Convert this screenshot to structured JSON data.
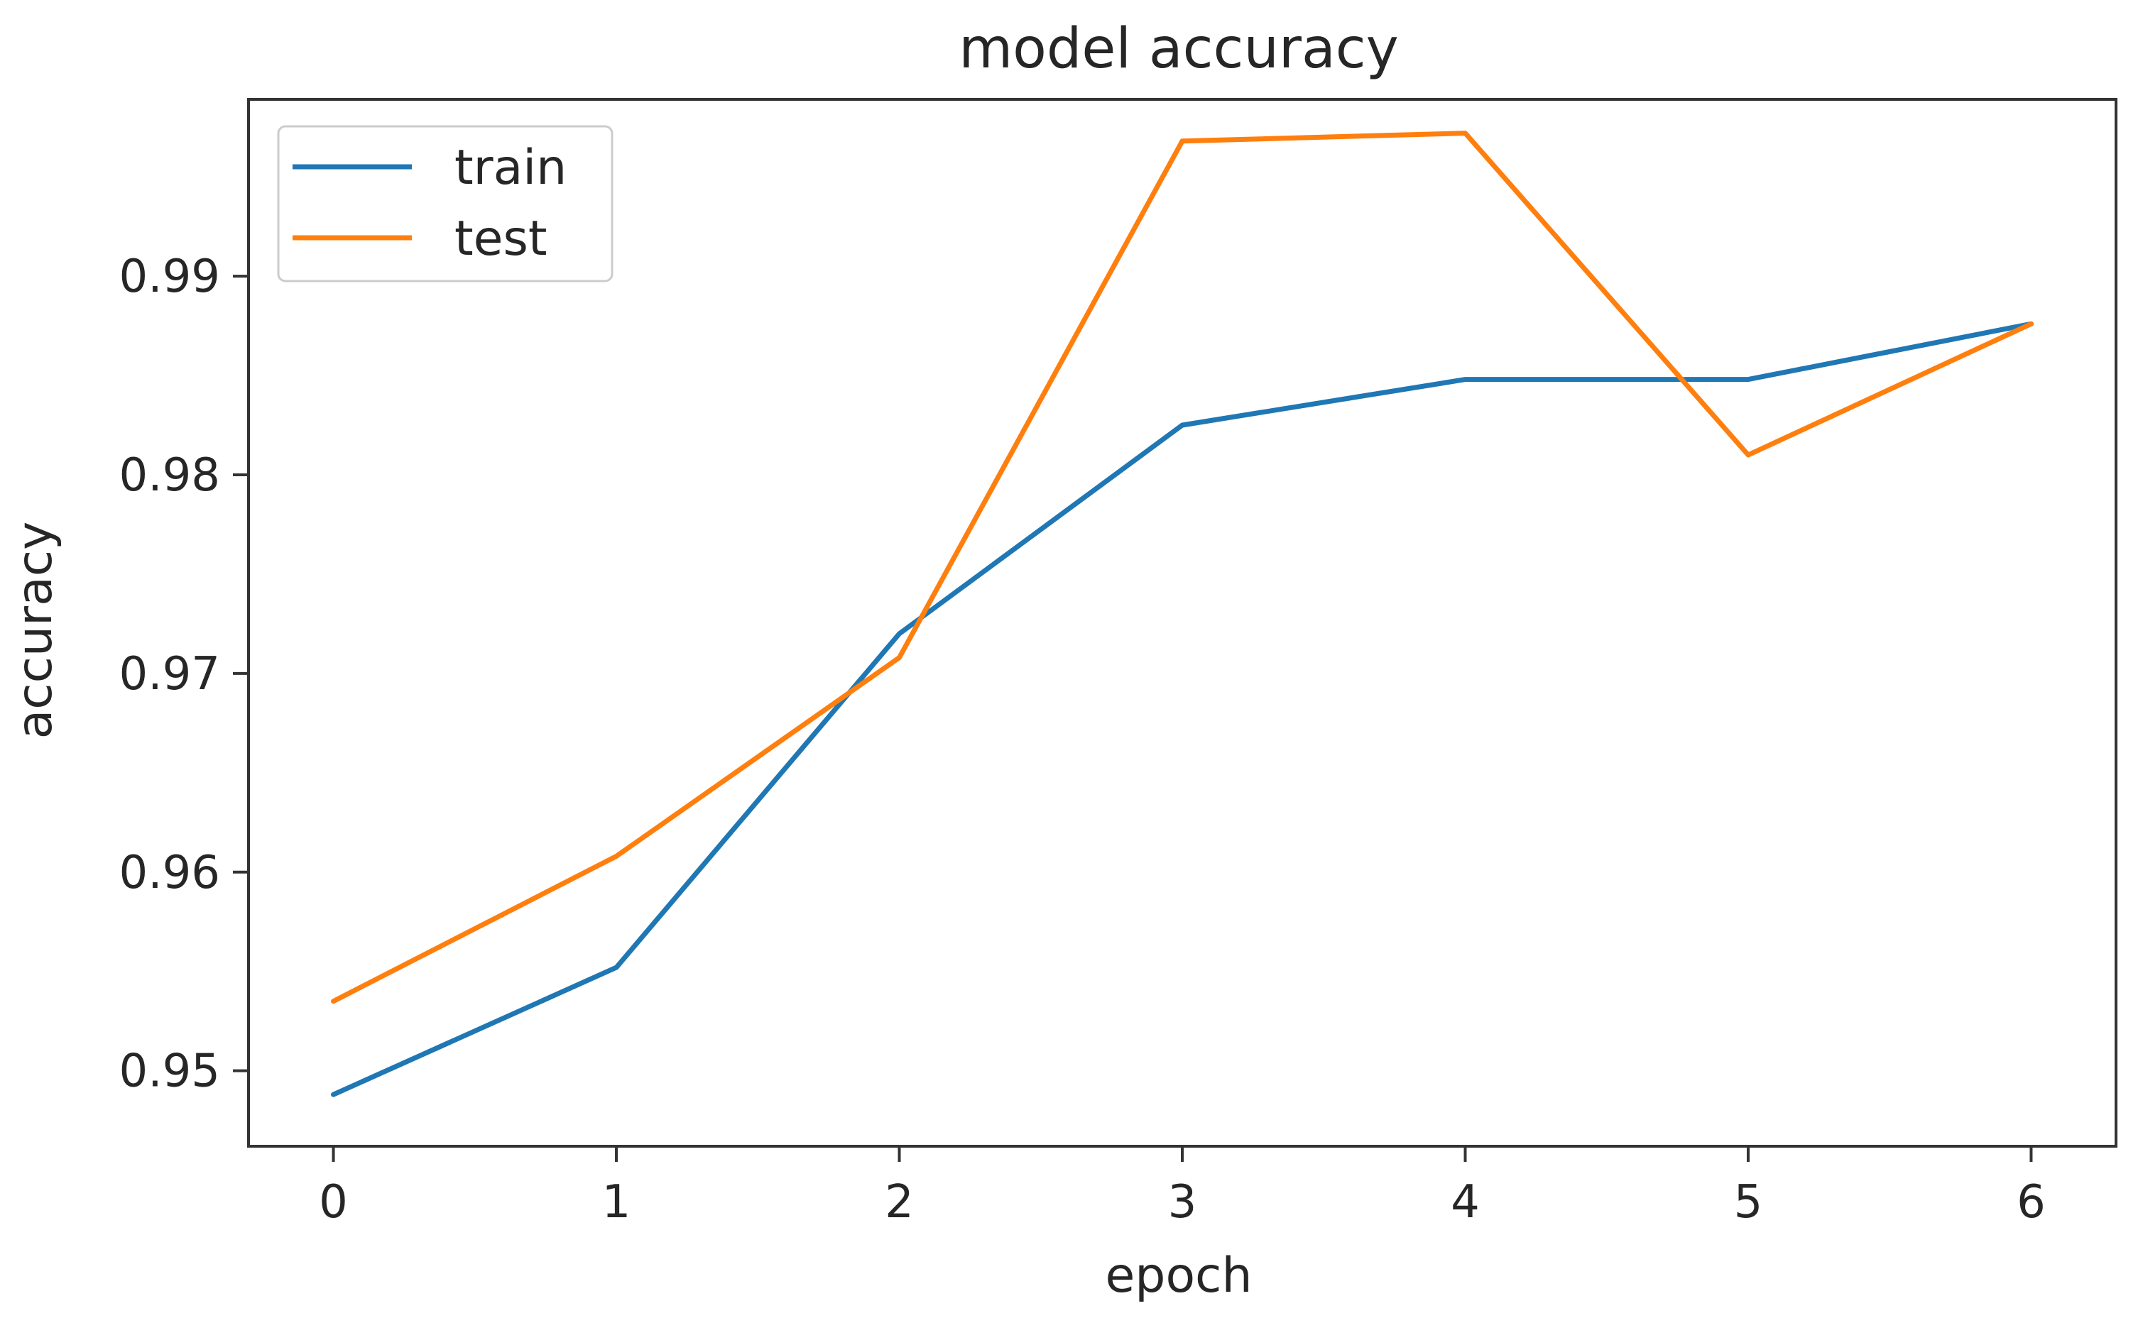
{
  "chart_data": {
    "type": "line",
    "title": "model accuracy",
    "xlabel": "epoch",
    "ylabel": "accuracy",
    "x": [
      0,
      1,
      2,
      3,
      4,
      5,
      6
    ],
    "xticks": [
      "0",
      "1",
      "2",
      "3",
      "4",
      "5",
      "6"
    ],
    "yticks": [
      "0.95",
      "0.96",
      "0.97",
      "0.98",
      "0.99"
    ],
    "ytick_values": [
      0.95,
      0.96,
      0.97,
      0.98,
      0.99
    ],
    "xlim": [
      -0.3,
      6.3
    ],
    "ylim": [
      0.9462,
      0.9989
    ],
    "grid": false,
    "legend_position": "upper-left",
    "series": [
      {
        "name": "train",
        "color": "#1f77b4",
        "values": [
          0.9488,
          0.9552,
          0.972,
          0.9825,
          0.9848,
          0.9848,
          0.9876
        ]
      },
      {
        "name": "test",
        "color": "#ff7f0e",
        "values": [
          0.9535,
          0.9608,
          0.9708,
          0.9968,
          0.9972,
          0.981,
          0.9876
        ]
      }
    ]
  }
}
